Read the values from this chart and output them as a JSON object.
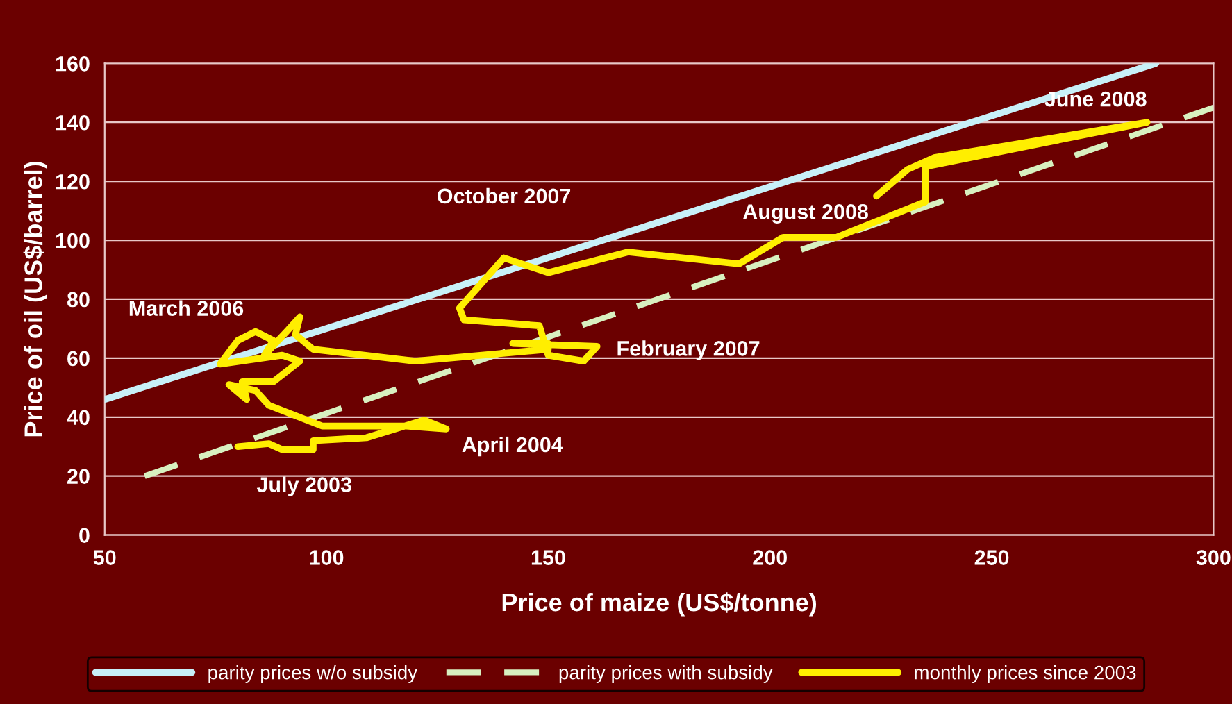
{
  "chart_data": {
    "type": "line",
    "xlabel": "Price of maize (US$/tonne)",
    "ylabel": "Price of oil (US$/barrel)",
    "xlim": [
      50,
      300
    ],
    "xticks": [
      50,
      100,
      150,
      200,
      250,
      300
    ],
    "ylim": [
      0,
      160
    ],
    "yticks": [
      0,
      20,
      40,
      60,
      80,
      100,
      120,
      140,
      160
    ],
    "grid": "y",
    "legend": "bottom",
    "series": [
      {
        "name": "parity prices w/o subsidy",
        "color": "#c8f0f8",
        "line_style": "solid",
        "x": [
          50,
          287
        ],
        "values": [
          46,
          160
        ]
      },
      {
        "name": "parity prices with subsidy",
        "color": "#d8f0c0",
        "line_style": "dashed",
        "x": [
          59,
          300
        ],
        "values": [
          20,
          145
        ]
      },
      {
        "name": "monthly prices since 2003",
        "color": "#ffee00",
        "line_style": "solid",
        "x": [
          80,
          87,
          90,
          97,
          97,
          109,
          122,
          127,
          118,
          99,
          87,
          84,
          78,
          82,
          81,
          88,
          94,
          90,
          76,
          80,
          84,
          88,
          86,
          91,
          94,
          93,
          97,
          120,
          150,
          150,
          142,
          161,
          158,
          150,
          148,
          131,
          130,
          140,
          150,
          168,
          193,
          203,
          215,
          235,
          235,
          285,
          237,
          231,
          224
        ],
        "values": [
          30,
          31,
          29,
          29,
          32,
          33,
          39,
          36,
          37,
          37,
          44,
          49,
          51,
          46,
          52,
          52,
          59,
          61,
          58,
          66,
          69,
          66,
          61,
          69,
          74,
          68,
          63,
          59,
          63,
          65,
          65,
          64,
          59,
          61,
          71,
          73,
          77,
          94,
          89,
          96,
          92,
          101,
          101,
          113,
          125,
          140,
          128,
          124,
          115
        ]
      }
    ],
    "annotations": [
      {
        "text": "July 2003",
        "x": 95,
        "y": 29
      },
      {
        "text": "April 2004",
        "x": 127,
        "y": 36
      },
      {
        "text": "March 2006",
        "x": 84,
        "y": 69
      },
      {
        "text": "February 2007",
        "x": 161,
        "y": 64
      },
      {
        "text": "October 2007",
        "x": 140,
        "y": 94
      },
      {
        "text": "June 2008",
        "x": 285,
        "y": 140
      },
      {
        "text": "August 2008",
        "x": 224,
        "y": 115
      }
    ]
  }
}
